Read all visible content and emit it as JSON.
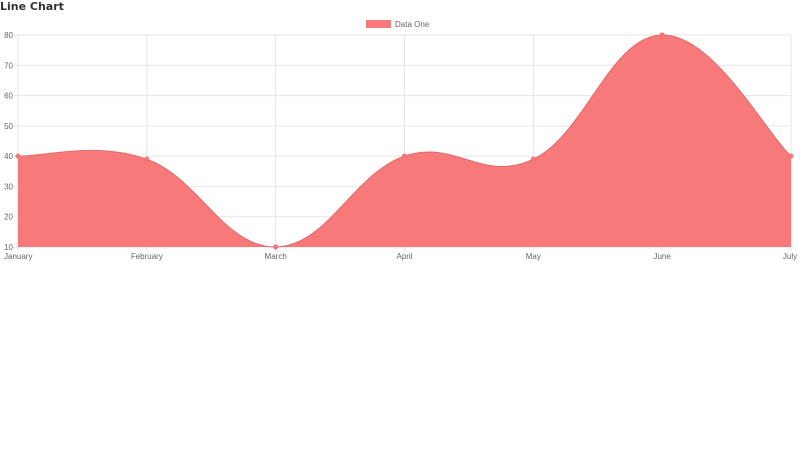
{
  "page": {
    "title": "Line Chart"
  },
  "chart_data": {
    "type": "area",
    "title": "",
    "categories": [
      "January",
      "February",
      "March",
      "April",
      "May",
      "June",
      "July"
    ],
    "series": [
      {
        "name": "Data One",
        "values": [
          40,
          39,
          10,
          40,
          39,
          80,
          40
        ],
        "color": "#f87979"
      }
    ],
    "ylim": [
      10,
      80
    ],
    "yticks": [
      10,
      20,
      30,
      40,
      50,
      60,
      70,
      80
    ],
    "grid": true,
    "legend": "top-center",
    "curve": "smooth"
  }
}
